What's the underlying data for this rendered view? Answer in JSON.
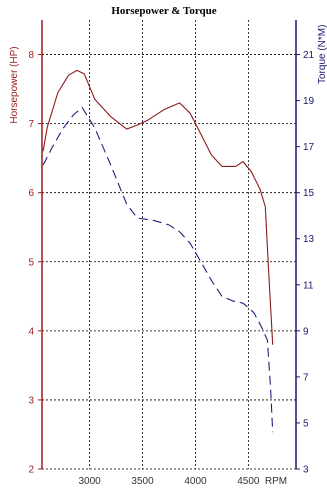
{
  "chart_data": {
    "type": "line",
    "title": "Horsepower & Torque",
    "xlabel": "RPM",
    "ylabel_left": "Horsepower (HP)",
    "ylabel_right": "Torque (N*M)",
    "xlim": [
      2550,
      4950
    ],
    "ylim_left": [
      2,
      8.5
    ],
    "ylim_right": [
      3,
      22.5
    ],
    "x_ticks": [
      "3000",
      "3500",
      "4000",
      "4500"
    ],
    "x_tick_values": [
      3000,
      3500,
      4000,
      4500
    ],
    "y_left_ticks": [
      "2",
      "3",
      "4",
      "5",
      "6",
      "7",
      "8"
    ],
    "y_left_tick_values": [
      2,
      3,
      4,
      5,
      6,
      7,
      8
    ],
    "y_right_ticks": [
      "3",
      "5",
      "7",
      "9",
      "11",
      "13",
      "15",
      "17",
      "19",
      "21"
    ],
    "y_right_tick_values": [
      3,
      5,
      7,
      9,
      11,
      13,
      15,
      17,
      19,
      21
    ],
    "grid": true,
    "colors": {
      "horsepower": "#8b1a1a",
      "torque": "#1a237e",
      "left_axis": "#9b1c1c",
      "right_axis": "#1a1a6e",
      "grid": "#000000"
    },
    "series": [
      {
        "axis": "left",
        "style": "solid",
        "x": [
          2560,
          2600,
          2700,
          2800,
          2880,
          2950,
          3050,
          3200,
          3350,
          3450,
          3550,
          3700,
          3850,
          3950,
          4050,
          4150,
          4250,
          4380,
          4450,
          4530,
          4610,
          4660,
          4690,
          4730
        ],
        "values": [
          6.6,
          6.95,
          7.45,
          7.7,
          7.77,
          7.72,
          7.35,
          7.1,
          6.92,
          6.98,
          7.05,
          7.2,
          7.3,
          7.15,
          6.85,
          6.55,
          6.38,
          6.38,
          6.45,
          6.3,
          6.05,
          5.8,
          4.9,
          3.8
        ]
      },
      {
        "axis": "right",
        "style": "dashed",
        "x": [
          2560,
          2650,
          2750,
          2850,
          2930,
          3050,
          3200,
          3350,
          3450,
          3600,
          3750,
          3850,
          3950,
          4050,
          4150,
          4250,
          4350,
          4450,
          4550,
          4620,
          4680,
          4710,
          4730
        ],
        "values": [
          16.2,
          17.0,
          17.8,
          18.4,
          18.7,
          17.8,
          16.2,
          14.5,
          13.9,
          13.8,
          13.6,
          13.3,
          12.8,
          12.0,
          11.2,
          10.5,
          10.3,
          10.2,
          9.8,
          9.2,
          8.6,
          6.5,
          4.6
        ]
      }
    ]
  }
}
